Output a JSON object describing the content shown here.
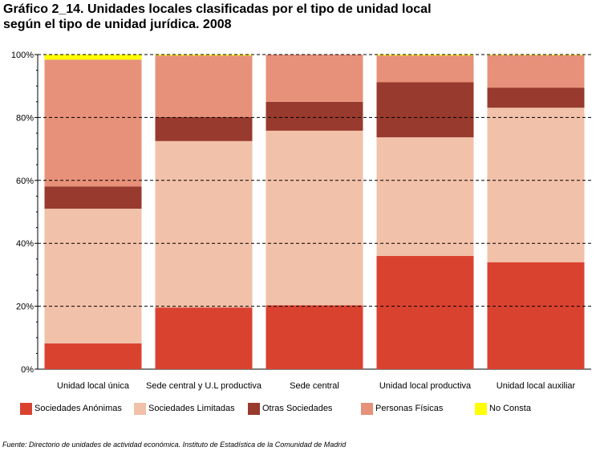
{
  "title_line1": "Gráfico 2_14. Unidades locales clasificadas por el tipo de unidad local",
  "title_line2": "según el tipo de unidad jurídica. 2008",
  "source": "Fuente: Directorio de unidades de actividad económica. Instituto de Estadística de la Comunidad de Madrid",
  "chart_data": {
    "type": "bar",
    "stacked": true,
    "percent": true,
    "categories": [
      "Unidad local única",
      "Sede central y U.L productiva",
      "Sede central",
      "Unidad local productiva",
      "Unidad local auxiliar"
    ],
    "series": [
      {
        "name": "Sociedades Anónimas",
        "color": "#da4230",
        "values": [
          8.2,
          19.6,
          20.3,
          36.0,
          34.0
        ]
      },
      {
        "name": "Sociedades Limitadas",
        "color": "#f2c1a9",
        "values": [
          42.8,
          52.9,
          55.5,
          37.7,
          49.1
        ]
      },
      {
        "name": "Otras Sociedades",
        "color": "#983a2d",
        "values": [
          7.1,
          7.6,
          9.2,
          17.5,
          6.4
        ]
      },
      {
        "name": "Personas Físicas",
        "color": "#e8917a",
        "values": [
          40.3,
          19.6,
          15.0,
          8.5,
          10.3
        ]
      },
      {
        "name": "No Consta",
        "color": "#ffff00",
        "values": [
          1.6,
          0.3,
          0.0,
          0.3,
          0.2
        ]
      }
    ],
    "yticks": [
      "0%",
      "20%",
      "40%",
      "60%",
      "80%",
      "100%"
    ],
    "ylim": [
      0,
      100
    ],
    "grid": true,
    "legend_position": "bottom"
  }
}
